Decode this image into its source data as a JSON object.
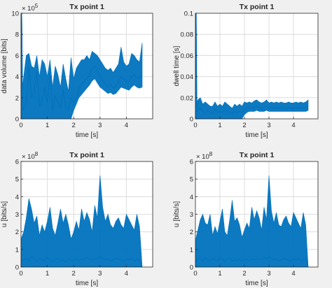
{
  "colors": {
    "series": "#0072bd",
    "grid": "#dcdcdc",
    "axes": "#262626",
    "background": "#f0f0f0",
    "axes_bg": "#ffffff"
  },
  "chart_data": [
    {
      "id": "data-volume",
      "type": "line",
      "title": "Tx point 1",
      "xlabel": "time [s]",
      "ylabel": "data volume [bits]",
      "xlim": [
        0,
        5
      ],
      "ylim": [
        0,
        1000000
      ],
      "xticks": [
        "0",
        "1",
        "2",
        "3",
        "4"
      ],
      "yticks": [
        "0",
        "2",
        "4",
        "6",
        "8",
        "10"
      ],
      "y_exponent": "× 10^5",
      "grid": true,
      "series": [
        {
          "x": [
            0,
            0.03,
            0.06,
            0.1,
            0.2,
            0.3,
            0.4,
            0.5,
            0.6,
            0.7,
            0.8,
            0.9,
            1.0,
            1.1,
            1.2,
            1.3,
            1.4,
            1.5,
            1.6,
            1.7,
            1.8,
            1.9,
            2.0,
            2.1,
            2.2,
            2.3,
            2.4,
            2.5,
            2.6,
            2.7,
            2.8,
            2.9,
            3.0,
            3.1,
            3.2,
            3.3,
            3.4,
            3.5,
            3.6,
            3.7,
            3.8,
            3.9,
            4.0,
            4.1,
            4.2,
            4.3,
            4.4,
            4.5,
            4.6
          ],
          "values": [
            900000,
            950000,
            80000,
            100000,
            150000,
            500000,
            200000,
            250000,
            450000,
            120000,
            180000,
            300000,
            150000,
            420000,
            80000,
            220000,
            160000,
            100000,
            280000,
            120000,
            90000,
            200000,
            150000,
            200000,
            280000,
            330000,
            360000,
            380000,
            420000,
            480000,
            500000,
            460000,
            400000,
            370000,
            330000,
            300000,
            330000,
            290000,
            310000,
            350000,
            400000,
            380000,
            360000,
            350000,
            400000,
            420000,
            390000,
            380000,
            450000
          ],
          "upper": [
            1000000,
            1000000,
            300000,
            400000,
            600000,
            620000,
            500000,
            480000,
            600000,
            400000,
            560000,
            520000,
            400000,
            560000,
            300000,
            500000,
            420000,
            300000,
            520000,
            380000,
            260000,
            580000,
            380000,
            480000,
            520000,
            560000,
            560000,
            600000,
            560000,
            640000,
            620000,
            600000,
            560000,
            520000,
            480000,
            460000,
            480000,
            440000,
            480000,
            520000,
            680000,
            540000,
            500000,
            520000,
            620000,
            600000,
            560000,
            540000,
            720000
          ],
          "lower": [
            0,
            0,
            0,
            0,
            0,
            0,
            0,
            0,
            0,
            0,
            0,
            0,
            0,
            0,
            0,
            0,
            0,
            0,
            0,
            0,
            0,
            0,
            80000,
            140000,
            200000,
            230000,
            260000,
            290000,
            320000,
            360000,
            380000,
            340000,
            300000,
            280000,
            260000,
            240000,
            250000,
            230000,
            240000,
            270000,
            300000,
            290000,
            280000,
            270000,
            300000,
            320000,
            300000,
            290000,
            300000
          ]
        }
      ]
    },
    {
      "id": "dwell-time",
      "type": "line",
      "title": "Tx point 1",
      "xlabel": "time [s]",
      "ylabel": "dwell time [s]",
      "xlim": [
        0,
        5
      ],
      "ylim": [
        0,
        0.1
      ],
      "xticks": [
        "0",
        "1",
        "2",
        "3",
        "4"
      ],
      "yticks": [
        "0",
        "0.02",
        "0.04",
        "0.06",
        "0.08",
        "0.1"
      ],
      "grid": true,
      "series": [
        {
          "x": [
            0,
            0.03,
            0.06,
            0.1,
            0.2,
            0.3,
            0.4,
            0.5,
            0.6,
            0.7,
            0.8,
            0.9,
            1.0,
            1.1,
            1.2,
            1.3,
            1.4,
            1.5,
            1.6,
            1.7,
            1.8,
            1.9,
            2.0,
            2.1,
            2.2,
            2.3,
            2.4,
            2.5,
            2.6,
            2.7,
            2.8,
            2.9,
            3.0,
            3.1,
            3.2,
            3.3,
            3.4,
            3.5,
            3.6,
            3.7,
            3.8,
            3.9,
            4.0,
            4.1,
            4.2,
            4.3,
            4.4,
            4.5,
            4.6
          ],
          "values": [
            0.095,
            0.1,
            0.006,
            0.008,
            0.01,
            0.007,
            0.006,
            0.008,
            0.006,
            0.005,
            0.009,
            0.006,
            0.007,
            0.006,
            0.008,
            0.007,
            0.006,
            0.005,
            0.007,
            0.006,
            0.007,
            0.006,
            0.009,
            0.01,
            0.011,
            0.01,
            0.011,
            0.012,
            0.011,
            0.01,
            0.011,
            0.012,
            0.01,
            0.011,
            0.01,
            0.011,
            0.01,
            0.011,
            0.01,
            0.01,
            0.011,
            0.01,
            0.01,
            0.011,
            0.01,
            0.011,
            0.01,
            0.011,
            0.012
          ],
          "upper": [
            0.1,
            0.1,
            0.015,
            0.018,
            0.02,
            0.014,
            0.016,
            0.014,
            0.012,
            0.012,
            0.016,
            0.012,
            0.014,
            0.012,
            0.016,
            0.014,
            0.012,
            0.01,
            0.014,
            0.012,
            0.014,
            0.012,
            0.016,
            0.015,
            0.016,
            0.015,
            0.017,
            0.018,
            0.016,
            0.015,
            0.016,
            0.018,
            0.015,
            0.016,
            0.015,
            0.016,
            0.015,
            0.016,
            0.015,
            0.015,
            0.016,
            0.015,
            0.015,
            0.016,
            0.015,
            0.016,
            0.015,
            0.016,
            0.018
          ],
          "lower": [
            0,
            0,
            0,
            0,
            0,
            0,
            0,
            0,
            0,
            0,
            0,
            0,
            0,
            0,
            0,
            0,
            0,
            0,
            0,
            0,
            0,
            0,
            0.004,
            0.006,
            0.007,
            0.007,
            0.007,
            0.008,
            0.007,
            0.007,
            0.007,
            0.008,
            0.007,
            0.007,
            0.007,
            0.007,
            0.007,
            0.007,
            0.007,
            0.007,
            0.007,
            0.007,
            0.007,
            0.007,
            0.007,
            0.007,
            0.007,
            0.007,
            0.008
          ]
        }
      ]
    },
    {
      "id": "rate-left",
      "type": "line",
      "title": "Tx point 1",
      "xlabel": "time [s]",
      "ylabel": "u [bits/s]",
      "xlim": [
        0,
        5
      ],
      "ylim": [
        0,
        600000000
      ],
      "xticks": [
        "0",
        "1",
        "2",
        "3",
        "4"
      ],
      "yticks": [
        "0",
        "1",
        "2",
        "3",
        "4",
        "5",
        "6"
      ],
      "y_exponent": "× 10^8",
      "grid": true,
      "series": [
        {
          "x": [
            0,
            0.1,
            0.2,
            0.3,
            0.4,
            0.5,
            0.6,
            0.7,
            0.8,
            0.9,
            1.0,
            1.1,
            1.2,
            1.3,
            1.4,
            1.5,
            1.6,
            1.7,
            1.8,
            1.9,
            2.0,
            2.1,
            2.2,
            2.3,
            2.4,
            2.5,
            2.6,
            2.7,
            2.8,
            2.9,
            3.0,
            3.1,
            3.2,
            3.3,
            3.4,
            3.5,
            3.6,
            3.7,
            3.8,
            3.9,
            4.0,
            4.1,
            4.2,
            4.3,
            4.4,
            4.5,
            4.6
          ],
          "values": [
            30000000,
            40000000,
            50000000,
            35000000,
            60000000,
            45000000,
            30000000,
            50000000,
            40000000,
            35000000,
            55000000,
            40000000,
            30000000,
            45000000,
            50000000,
            35000000,
            40000000,
            30000000,
            45000000,
            35000000,
            40000000,
            50000000,
            35000000,
            45000000,
            40000000,
            55000000,
            45000000,
            40000000,
            50000000,
            45000000,
            60000000,
            50000000,
            40000000,
            45000000,
            35000000,
            40000000,
            50000000,
            45000000,
            40000000,
            35000000,
            45000000,
            40000000,
            50000000,
            35000000,
            45000000,
            40000000,
            0
          ],
          "upper": [
            160000000,
            200000000,
            280000000,
            390000000,
            330000000,
            250000000,
            290000000,
            180000000,
            240000000,
            200000000,
            260000000,
            340000000,
            220000000,
            180000000,
            250000000,
            330000000,
            250000000,
            300000000,
            240000000,
            160000000,
            200000000,
            260000000,
            210000000,
            330000000,
            260000000,
            310000000,
            270000000,
            200000000,
            350000000,
            280000000,
            520000000,
            340000000,
            260000000,
            300000000,
            240000000,
            220000000,
            260000000,
            280000000,
            240000000,
            220000000,
            300000000,
            270000000,
            240000000,
            210000000,
            300000000,
            230000000,
            0
          ],
          "lower": [
            0,
            0,
            0,
            0,
            0,
            0,
            0,
            0,
            0,
            0,
            0,
            0,
            0,
            0,
            0,
            0,
            0,
            0,
            0,
            0,
            0,
            0,
            0,
            0,
            0,
            0,
            0,
            0,
            0,
            0,
            0,
            0,
            0,
            0,
            0,
            0,
            0,
            0,
            0,
            0,
            0,
            0,
            0,
            0,
            0,
            0,
            0
          ]
        }
      ]
    },
    {
      "id": "rate-right",
      "type": "line",
      "title": "Tx point 1",
      "xlabel": "time [s]",
      "ylabel": "u [bits/s]",
      "xlim": [
        0,
        5
      ],
      "ylim": [
        0,
        600000000
      ],
      "xticks": [
        "0",
        "1",
        "2",
        "3",
        "4"
      ],
      "yticks": [
        "0",
        "1",
        "2",
        "3",
        "4",
        "5",
        "6"
      ],
      "y_exponent": "× 10^8",
      "grid": true,
      "series": [
        {
          "x": [
            0,
            0.1,
            0.2,
            0.3,
            0.4,
            0.5,
            0.6,
            0.7,
            0.8,
            0.9,
            1.0,
            1.1,
            1.2,
            1.3,
            1.4,
            1.5,
            1.6,
            1.7,
            1.8,
            1.9,
            2.0,
            2.1,
            2.2,
            2.3,
            2.4,
            2.5,
            2.6,
            2.7,
            2.8,
            2.9,
            3.0,
            3.1,
            3.2,
            3.3,
            3.4,
            3.5,
            3.6,
            3.7,
            3.8,
            3.9,
            4.0,
            4.1,
            4.2,
            4.3,
            4.4,
            4.5,
            4.6
          ],
          "values": [
            30000000,
            45000000,
            50000000,
            35000000,
            55000000,
            45000000,
            35000000,
            50000000,
            40000000,
            35000000,
            50000000,
            45000000,
            30000000,
            45000000,
            50000000,
            35000000,
            40000000,
            35000000,
            45000000,
            35000000,
            40000000,
            45000000,
            35000000,
            45000000,
            40000000,
            50000000,
            45000000,
            40000000,
            55000000,
            45000000,
            60000000,
            50000000,
            40000000,
            45000000,
            35000000,
            40000000,
            50000000,
            45000000,
            40000000,
            35000000,
            45000000,
            40000000,
            50000000,
            35000000,
            45000000,
            40000000,
            0
          ],
          "upper": [
            150000000,
            210000000,
            270000000,
            300000000,
            250000000,
            240000000,
            300000000,
            180000000,
            230000000,
            190000000,
            260000000,
            330000000,
            200000000,
            180000000,
            270000000,
            380000000,
            260000000,
            280000000,
            240000000,
            170000000,
            210000000,
            250000000,
            220000000,
            340000000,
            270000000,
            320000000,
            280000000,
            210000000,
            340000000,
            270000000,
            520000000,
            320000000,
            250000000,
            310000000,
            240000000,
            230000000,
            270000000,
            290000000,
            250000000,
            230000000,
            310000000,
            280000000,
            250000000,
            220000000,
            310000000,
            240000000,
            0
          ],
          "lower": [
            0,
            0,
            0,
            0,
            0,
            0,
            0,
            0,
            0,
            0,
            0,
            0,
            0,
            0,
            0,
            0,
            0,
            0,
            0,
            0,
            0,
            0,
            0,
            0,
            0,
            0,
            0,
            0,
            0,
            0,
            0,
            0,
            0,
            0,
            0,
            0,
            0,
            0,
            0,
            0,
            0,
            0,
            0,
            0,
            0,
            0,
            0
          ]
        }
      ]
    }
  ]
}
